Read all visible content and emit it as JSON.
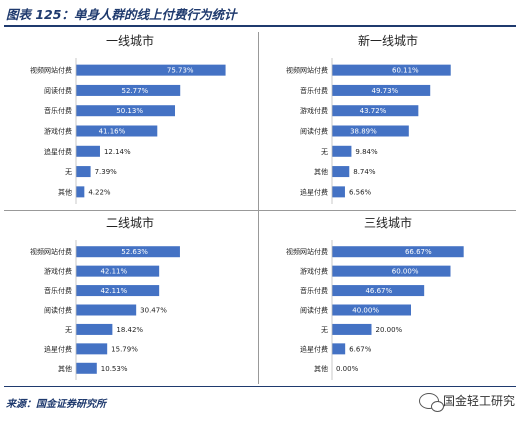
{
  "figure_title": "图表 125：单身人群的线上付费行为统计",
  "source": "来源：国金证券研究所",
  "brand": "国金轻工研究",
  "icons": {
    "brand": "wechat-icon"
  },
  "colors": {
    "bar": "#4472c4",
    "title": "#1f3a6e"
  },
  "chart_data": [
    {
      "type": "bar",
      "orientation": "horizontal",
      "title": "一线城市",
      "categories": [
        "视频网站付费",
        "阅读付费",
        "音乐付费",
        "游戏付费",
        "追星付费",
        "无",
        "其他"
      ],
      "values": [
        75.73,
        52.77,
        50.13,
        41.16,
        12.14,
        7.39,
        4.22
      ],
      "labels": [
        "75.73%",
        "52.77%",
        "50.13%",
        "41.16%",
        "12.14%",
        "7.39%",
        "4.22%"
      ],
      "unit": "%",
      "xlim": [
        0,
        80
      ]
    },
    {
      "type": "bar",
      "orientation": "horizontal",
      "title": "新一线城市",
      "categories": [
        "视频网站付费",
        "音乐付费",
        "游戏付费",
        "阅读付费",
        "无",
        "其他",
        "追星付费"
      ],
      "values": [
        60.11,
        49.73,
        43.72,
        38.89,
        9.84,
        8.74,
        6.56
      ],
      "labels": [
        "60.11%",
        "49.73%",
        "43.72%",
        "38.89%",
        "9.84%",
        "8.74%",
        "6.56%"
      ],
      "unit": "%",
      "xlim": [
        0,
        80
      ]
    },
    {
      "type": "bar",
      "orientation": "horizontal",
      "title": "二线城市",
      "categories": [
        "视频网站付费",
        "游戏付费",
        "音乐付费",
        "阅读付费",
        "无",
        "追星付费",
        "其他"
      ],
      "values": [
        52.63,
        42.11,
        42.11,
        30.47,
        18.42,
        15.79,
        10.53
      ],
      "labels": [
        "52.63%",
        "42.11%",
        "42.11%",
        "30.47%",
        "18.42%",
        "15.79%",
        "10.53%"
      ],
      "unit": "%",
      "xlim": [
        0,
        80
      ]
    },
    {
      "type": "bar",
      "orientation": "horizontal",
      "title": "三线城市",
      "categories": [
        "视频网站付费",
        "游戏付费",
        "音乐付费",
        "阅读付费",
        "无",
        "追星付费",
        "其他"
      ],
      "values": [
        66.67,
        60.0,
        46.67,
        40.0,
        20.0,
        6.67,
        0.0
      ],
      "labels": [
        "66.67%",
        "60.00%",
        "46.67%",
        "40.00%",
        "20.00%",
        "6.67%",
        "0.00%"
      ],
      "unit": "%",
      "xlim": [
        0,
        80
      ]
    }
  ]
}
